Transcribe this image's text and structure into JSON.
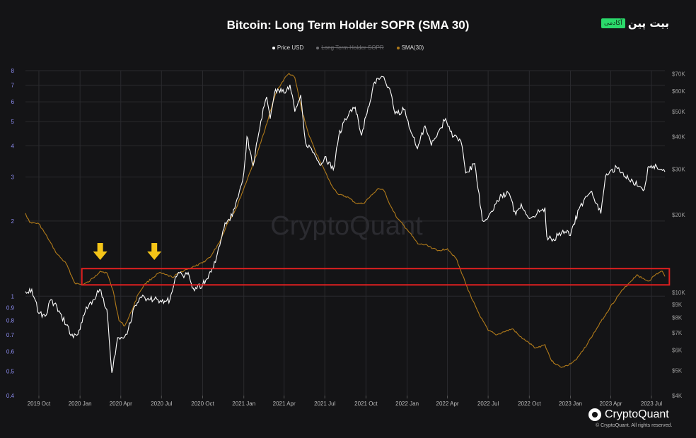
{
  "header": {
    "title": "Bitcoin: Long Term Holder SOPR (SMA 30)",
    "brand_name": "بیت پین",
    "brand_badge": "آکادمی"
  },
  "watermark": "CryptoQuant",
  "footer": {
    "logo_text": "CryptoQuant",
    "copyright": "© CryptoQuant. All rights reserved."
  },
  "colors": {
    "background": "#141416",
    "price": "#ffffff",
    "sma": "#b07a1a",
    "grid": "#2a2a2e",
    "left_axis": "#8c8cf0",
    "right_axis": "#9a9a9a",
    "highlight_box": "#e02020",
    "arrow": "#f5c518"
  },
  "chart_data": {
    "type": "line",
    "title": "Bitcoin: Long Term Holder SOPR (SMA 30)",
    "legend": [
      {
        "name": "Price USD",
        "color": "#ffffff",
        "visible": true
      },
      {
        "name": "Long Term Holder SOPR",
        "color": "#888888",
        "visible": false
      },
      {
        "name": "SMA(30)",
        "color": "#b07a1a",
        "visible": true
      }
    ],
    "legend_position": "top-center",
    "x_ticks": [
      "2019 Oct",
      "2020 Jan",
      "2020 Apr",
      "2020 Jul",
      "2020 Oct",
      "2021 Jan",
      "2021 Apr",
      "2021 Jul",
      "2021 Oct",
      "2022 Jan",
      "2022 Apr",
      "2022 Jul",
      "2022 Oct",
      "2023 Jan",
      "2023 Apr",
      "2023 Jul"
    ],
    "x_range": [
      "2019-09-01",
      "2023-07-31"
    ],
    "y_left": {
      "scale": "log",
      "range": [
        0.4,
        8
      ],
      "ticks": [
        "8",
        "7",
        "6",
        "5",
        "4",
        "3",
        "2",
        "1",
        "0.9",
        "0.8",
        "0.7",
        "0.6",
        "0.5",
        "0.4"
      ]
    },
    "y_right": {
      "scale": "log",
      "range": [
        4000,
        72000
      ],
      "ticks": [
        "$70K",
        "$60K",
        "$50K",
        "$40K",
        "$30K",
        "$20K",
        "$10K",
        "$9K",
        "$8K",
        "$7K",
        "$6K",
        "$5K",
        "$4K"
      ]
    },
    "grid": true,
    "series": [
      {
        "name": "Price USD",
        "axis": "right",
        "points": [
          [
            "2019-09-01",
            10100
          ],
          [
            "2019-09-15",
            10300
          ],
          [
            "2019-10-01",
            8300
          ],
          [
            "2019-10-15",
            8100
          ],
          [
            "2019-10-28",
            9400
          ],
          [
            "2019-11-15",
            8500
          ],
          [
            "2019-12-01",
            7500
          ],
          [
            "2019-12-17",
            6700
          ],
          [
            "2020-01-01",
            7200
          ],
          [
            "2020-01-15",
            8800
          ],
          [
            "2020-02-01",
            9400
          ],
          [
            "2020-02-14",
            10300
          ],
          [
            "2020-03-01",
            8600
          ],
          [
            "2020-03-12",
            4900
          ],
          [
            "2020-03-25",
            6700
          ],
          [
            "2020-04-15",
            6900
          ],
          [
            "2020-05-01",
            8800
          ],
          [
            "2020-05-15",
            9600
          ],
          [
            "2020-06-01",
            9500
          ],
          [
            "2020-06-15",
            9400
          ],
          [
            "2020-07-01",
            9200
          ],
          [
            "2020-07-20",
            9400
          ],
          [
            "2020-08-01",
            11500
          ],
          [
            "2020-08-15",
            11800
          ],
          [
            "2020-09-01",
            11600
          ],
          [
            "2020-09-10",
            10400
          ],
          [
            "2020-10-01",
            10700
          ],
          [
            "2020-10-20",
            12000
          ],
          [
            "2020-11-01",
            13700
          ],
          [
            "2020-11-20",
            18600
          ],
          [
            "2020-12-01",
            19000
          ],
          [
            "2020-12-17",
            23000
          ],
          [
            "2021-01-01",
            29000
          ],
          [
            "2021-01-08",
            40000
          ],
          [
            "2021-01-22",
            31000
          ],
          [
            "2021-02-08",
            46000
          ],
          [
            "2021-02-21",
            57000
          ],
          [
            "2021-03-01",
            47000
          ],
          [
            "2021-03-13",
            61000
          ],
          [
            "2021-04-01",
            59000
          ],
          [
            "2021-04-14",
            63500
          ],
          [
            "2021-04-25",
            50000
          ],
          [
            "2021-05-08",
            58000
          ],
          [
            "2021-05-19",
            38000
          ],
          [
            "2021-06-01",
            36000
          ],
          [
            "2021-06-22",
            31000
          ],
          [
            "2021-07-01",
            33500
          ],
          [
            "2021-07-20",
            29800
          ],
          [
            "2021-08-01",
            40000
          ],
          [
            "2021-08-15",
            47000
          ],
          [
            "2021-09-07",
            52000
          ],
          [
            "2021-09-21",
            40500
          ],
          [
            "2021-10-01",
            48000
          ],
          [
            "2021-10-20",
            65000
          ],
          [
            "2021-11-10",
            68000
          ],
          [
            "2021-11-28",
            57000
          ],
          [
            "2021-12-05",
            49000
          ],
          [
            "2021-12-27",
            51000
          ],
          [
            "2022-01-10",
            41500
          ],
          [
            "2022-01-24",
            36000
          ],
          [
            "2022-02-10",
            44000
          ],
          [
            "2022-02-24",
            37000
          ],
          [
            "2022-03-28",
            47000
          ],
          [
            "2022-04-15",
            40000
          ],
          [
            "2022-05-01",
            38500
          ],
          [
            "2022-05-12",
            29000
          ],
          [
            "2022-06-01",
            31500
          ],
          [
            "2022-06-18",
            19000
          ],
          [
            "2022-07-01",
            19500
          ],
          [
            "2022-07-31",
            23800
          ],
          [
            "2022-08-15",
            24300
          ],
          [
            "2022-09-01",
            20000
          ],
          [
            "2022-09-13",
            22000
          ],
          [
            "2022-10-01",
            19300
          ],
          [
            "2022-11-05",
            21300
          ],
          [
            "2022-11-09",
            16500
          ],
          [
            "2022-11-21",
            15800
          ],
          [
            "2022-12-15",
            17400
          ],
          [
            "2023-01-01",
            16600
          ],
          [
            "2023-01-20",
            21000
          ],
          [
            "2023-02-15",
            24500
          ],
          [
            "2023-03-10",
            20200
          ],
          [
            "2023-03-20",
            28000
          ],
          [
            "2023-04-14",
            30500
          ],
          [
            "2023-05-01",
            28000
          ],
          [
            "2023-05-20",
            27000
          ],
          [
            "2023-06-15",
            25000
          ],
          [
            "2023-06-23",
            30500
          ],
          [
            "2023-07-05",
            30800
          ],
          [
            "2023-07-20",
            29900
          ],
          [
            "2023-07-31",
            29300
          ]
        ]
      },
      {
        "name": "SMA(30)",
        "axis": "left",
        "points": [
          [
            "2019-09-01",
            2.15
          ],
          [
            "2019-09-10",
            1.98
          ],
          [
            "2019-10-01",
            1.95
          ],
          [
            "2019-10-20",
            1.72
          ],
          [
            "2019-11-10",
            1.48
          ],
          [
            "2019-12-01",
            1.35
          ],
          [
            "2019-12-20",
            1.13
          ],
          [
            "2020-01-05",
            1.11
          ],
          [
            "2020-01-20",
            1.14
          ],
          [
            "2020-02-05",
            1.21
          ],
          [
            "2020-02-15",
            1.26
          ],
          [
            "2020-03-01",
            1.24
          ],
          [
            "2020-03-15",
            1.05
          ],
          [
            "2020-03-28",
            0.8
          ],
          [
            "2020-04-10",
            0.76
          ],
          [
            "2020-04-25",
            0.87
          ],
          [
            "2020-05-10",
            1.02
          ],
          [
            "2020-05-25",
            1.12
          ],
          [
            "2020-06-10",
            1.18
          ],
          [
            "2020-06-25",
            1.24
          ],
          [
            "2020-07-10",
            1.22
          ],
          [
            "2020-07-25",
            1.19
          ],
          [
            "2020-08-10",
            1.24
          ],
          [
            "2020-08-25",
            1.28
          ],
          [
            "2020-09-15",
            1.32
          ],
          [
            "2020-10-01",
            1.36
          ],
          [
            "2020-10-20",
            1.45
          ],
          [
            "2020-11-10",
            1.68
          ],
          [
            "2020-11-25",
            1.95
          ],
          [
            "2020-12-15",
            2.25
          ],
          [
            "2021-01-01",
            2.7
          ],
          [
            "2021-01-15",
            3.15
          ],
          [
            "2021-02-01",
            3.8
          ],
          [
            "2021-02-15",
            4.5
          ],
          [
            "2021-03-01",
            5.5
          ],
          [
            "2021-03-15",
            6.6
          ],
          [
            "2021-04-01",
            7.4
          ],
          [
            "2021-04-12",
            7.8
          ],
          [
            "2021-04-25",
            7.5
          ],
          [
            "2021-05-10",
            5.6
          ],
          [
            "2021-05-25",
            4.5
          ],
          [
            "2021-06-10",
            3.8
          ],
          [
            "2021-06-30",
            3.2
          ],
          [
            "2021-07-15",
            2.8
          ],
          [
            "2021-08-01",
            2.55
          ],
          [
            "2021-08-20",
            2.5
          ],
          [
            "2021-09-10",
            2.35
          ],
          [
            "2021-09-25",
            2.35
          ],
          [
            "2021-10-15",
            2.55
          ],
          [
            "2021-10-28",
            2.7
          ],
          [
            "2021-11-10",
            2.65
          ],
          [
            "2021-11-25",
            2.3
          ],
          [
            "2021-12-10",
            2.05
          ],
          [
            "2022-01-01",
            1.85
          ],
          [
            "2022-01-25",
            1.62
          ],
          [
            "2022-02-15",
            1.6
          ],
          [
            "2022-03-10",
            1.52
          ],
          [
            "2022-04-01",
            1.55
          ],
          [
            "2022-04-20",
            1.42
          ],
          [
            "2022-05-10",
            1.15
          ],
          [
            "2022-05-25",
            0.98
          ],
          [
            "2022-06-15",
            0.82
          ],
          [
            "2022-07-01",
            0.73
          ],
          [
            "2022-07-20",
            0.7
          ],
          [
            "2022-08-05",
            0.72
          ],
          [
            "2022-08-25",
            0.74
          ],
          [
            "2022-09-10",
            0.69
          ],
          [
            "2022-09-25",
            0.66
          ],
          [
            "2022-10-15",
            0.62
          ],
          [
            "2022-11-05",
            0.64
          ],
          [
            "2022-11-20",
            0.55
          ],
          [
            "2022-12-10",
            0.52
          ],
          [
            "2022-12-28",
            0.53
          ],
          [
            "2023-01-15",
            0.56
          ],
          [
            "2023-01-30",
            0.61
          ],
          [
            "2023-02-20",
            0.7
          ],
          [
            "2023-03-10",
            0.79
          ],
          [
            "2023-03-30",
            0.9
          ],
          [
            "2023-04-20",
            1.02
          ],
          [
            "2023-05-10",
            1.12
          ],
          [
            "2023-05-30",
            1.22
          ],
          [
            "2023-06-10",
            1.18
          ],
          [
            "2023-06-25",
            1.15
          ],
          [
            "2023-07-10",
            1.22
          ],
          [
            "2023-07-25",
            1.26
          ],
          [
            "2023-07-31",
            1.2
          ]
        ]
      }
    ],
    "annotations": [
      {
        "type": "box",
        "x_from": "2020-01-05",
        "x_to": "2023-08-10",
        "y_from": 1.11,
        "y_to": 1.29,
        "color": "#e02020"
      },
      {
        "type": "arrow",
        "x": "2020-02-15",
        "color": "#f5c518"
      },
      {
        "type": "arrow",
        "x": "2020-06-15",
        "color": "#f5c518"
      }
    ]
  }
}
